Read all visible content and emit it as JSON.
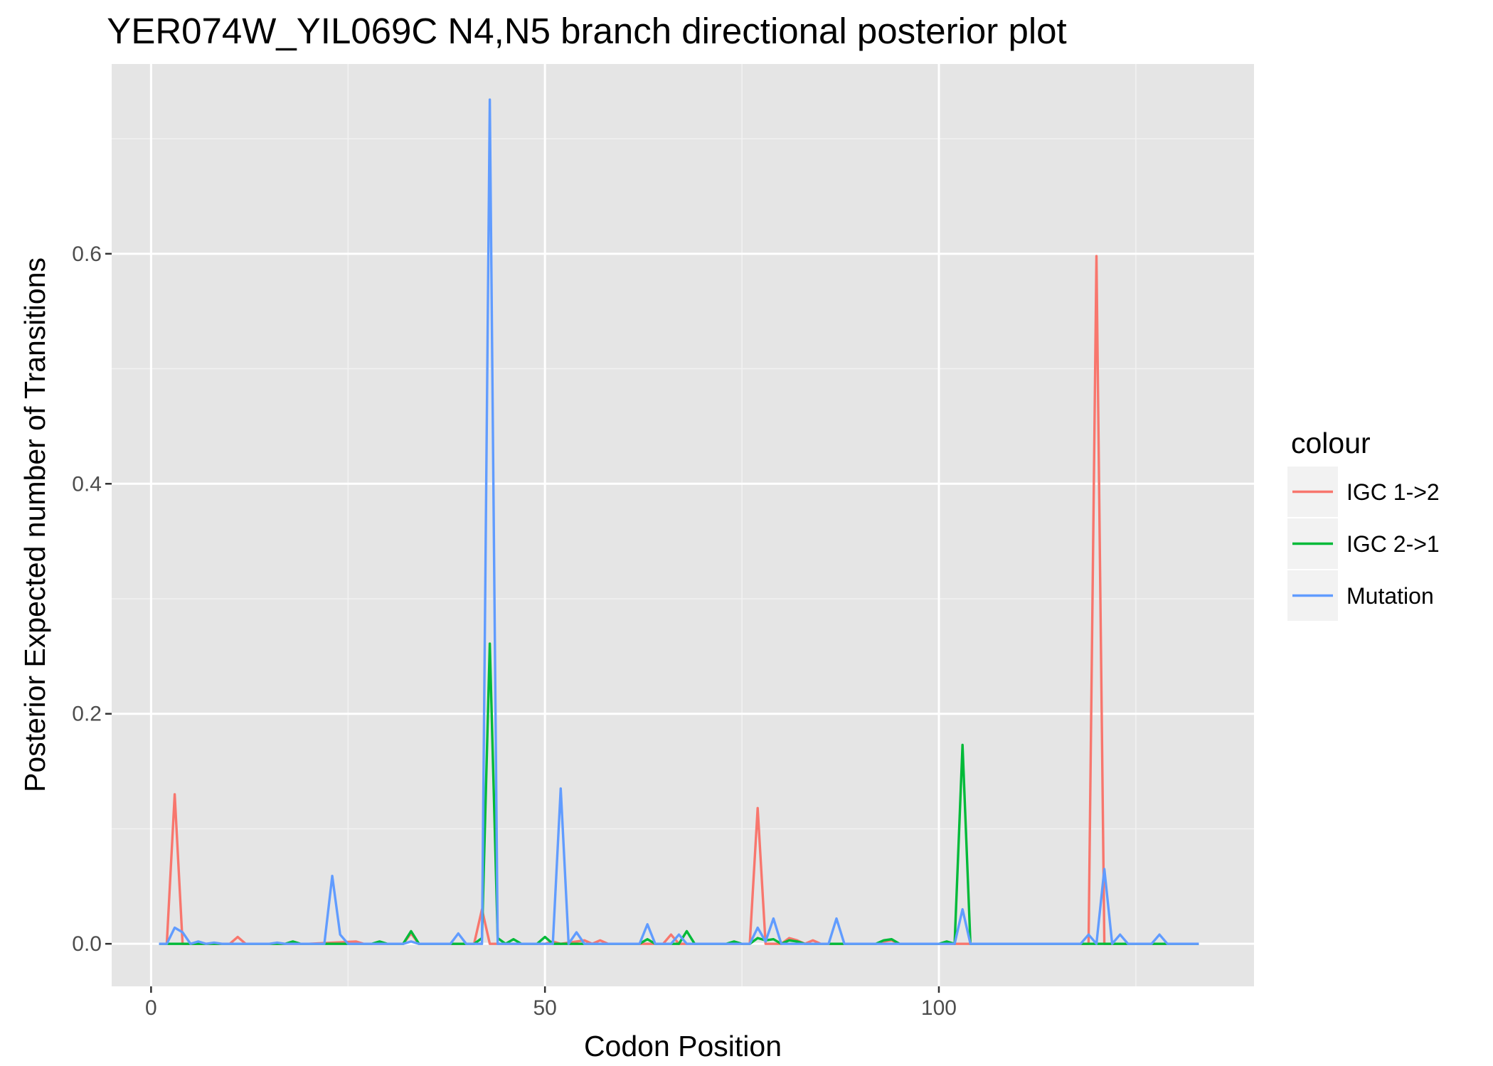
{
  "chart_data": {
    "type": "line",
    "title": "YER074W_YIL069C N4,N5 branch directional posterior plot",
    "xlabel": "Codon Position",
    "ylabel": "Posterior Expected number of Transitions",
    "xlim": [
      -5,
      140
    ],
    "ylim": [
      -0.037,
      0.765
    ],
    "x_ticks": [
      0,
      50,
      100
    ],
    "x_tick_labels": [
      "0",
      "50",
      "100"
    ],
    "y_ticks": [
      0.0,
      0.2,
      0.4,
      0.6
    ],
    "y_tick_labels": [
      "0.0",
      "0.2",
      "0.4",
      "0.6"
    ],
    "grid": true,
    "background": "#e5e5e5",
    "legend": {
      "title": "colour",
      "position": "right",
      "entries": [
        "IGC 1->2",
        "IGC 2->1",
        "Mutation"
      ]
    },
    "series": [
      {
        "name": "IGC 1->2",
        "color": "#f8766d",
        "points": [
          [
            1,
            0
          ],
          [
            2,
            0
          ],
          [
            3,
            0.13
          ],
          [
            4,
            0
          ],
          [
            5,
            0
          ],
          [
            10,
            0
          ],
          [
            11,
            0.006
          ],
          [
            12,
            0
          ],
          [
            20,
            0
          ],
          [
            26,
            0.002
          ],
          [
            27,
            0
          ],
          [
            32,
            0
          ],
          [
            33,
            0.009
          ],
          [
            34,
            0
          ],
          [
            41,
            0
          ],
          [
            42,
            0.03
          ],
          [
            43,
            0
          ],
          [
            44,
            0
          ],
          [
            50,
            0
          ],
          [
            51,
            0.002
          ],
          [
            52,
            0
          ],
          [
            55,
            0.003
          ],
          [
            56,
            0
          ],
          [
            57,
            0.003
          ],
          [
            58,
            0
          ],
          [
            65,
            0
          ],
          [
            66,
            0.008
          ],
          [
            67,
            0
          ],
          [
            76,
            0
          ],
          [
            77,
            0.118
          ],
          [
            78,
            0
          ],
          [
            80,
            0
          ],
          [
            81,
            0.005
          ],
          [
            82,
            0.003
          ],
          [
            83,
            0
          ],
          [
            84,
            0.003
          ],
          [
            85,
            0
          ],
          [
            92,
            0
          ],
          [
            93,
            0.002
          ],
          [
            94,
            0.003
          ],
          [
            95,
            0
          ],
          [
            119,
            0
          ],
          [
            120,
            0.598
          ],
          [
            121,
            0
          ],
          [
            125,
            0
          ],
          [
            133,
            0
          ]
        ]
      },
      {
        "name": "IGC 2->1",
        "color": "#00ba38",
        "points": [
          [
            1,
            0
          ],
          [
            17,
            0
          ],
          [
            18,
            0.002
          ],
          [
            19,
            0
          ],
          [
            28,
            0
          ],
          [
            29,
            0.002
          ],
          [
            30,
            0
          ],
          [
            32,
            0
          ],
          [
            33,
            0.011
          ],
          [
            34,
            0
          ],
          [
            41,
            0
          ],
          [
            42,
            0.005
          ],
          [
            43,
            0.261
          ],
          [
            44,
            0.005
          ],
          [
            45,
            0
          ],
          [
            46,
            0.004
          ],
          [
            47,
            0
          ],
          [
            49,
            0
          ],
          [
            50,
            0.006
          ],
          [
            51,
            0
          ],
          [
            62,
            0
          ],
          [
            63,
            0.004
          ],
          [
            64,
            0
          ],
          [
            67,
            0
          ],
          [
            68,
            0.011
          ],
          [
            69,
            0
          ],
          [
            73,
            0
          ],
          [
            74,
            0.002
          ],
          [
            75,
            0
          ],
          [
            76,
            0
          ],
          [
            77,
            0.005
          ],
          [
            78,
            0.003
          ],
          [
            79,
            0.004
          ],
          [
            80,
            0
          ],
          [
            81,
            0.003
          ],
          [
            82,
            0.002
          ],
          [
            83,
            0
          ],
          [
            92,
            0
          ],
          [
            93,
            0.003
          ],
          [
            94,
            0.004
          ],
          [
            95,
            0
          ],
          [
            100,
            0
          ],
          [
            101,
            0.002
          ],
          [
            102,
            0
          ],
          [
            103,
            0.173
          ],
          [
            104,
            0
          ],
          [
            133,
            0
          ]
        ]
      },
      {
        "name": "Mutation",
        "color": "#619cff",
        "points": [
          [
            1,
            0
          ],
          [
            2,
            0
          ],
          [
            3,
            0.014
          ],
          [
            4,
            0.01
          ],
          [
            5,
            0
          ],
          [
            6,
            0.002
          ],
          [
            7,
            0
          ],
          [
            8,
            0.001
          ],
          [
            9,
            0
          ],
          [
            15,
            0
          ],
          [
            16,
            0.001
          ],
          [
            17,
            0
          ],
          [
            21,
            0
          ],
          [
            22,
            0
          ],
          [
            23,
            0.059
          ],
          [
            24,
            0.008
          ],
          [
            25,
            0
          ],
          [
            32,
            0
          ],
          [
            33,
            0.002
          ],
          [
            34,
            0
          ],
          [
            38,
            0
          ],
          [
            39,
            0.009
          ],
          [
            40,
            0
          ],
          [
            41,
            0
          ],
          [
            42,
            0
          ],
          [
            43,
            0.734
          ],
          [
            44,
            0
          ],
          [
            51,
            0
          ],
          [
            52,
            0.135
          ],
          [
            53,
            0
          ],
          [
            54,
            0.01
          ],
          [
            55,
            0
          ],
          [
            62,
            0
          ],
          [
            63,
            0.017
          ],
          [
            64,
            0
          ],
          [
            66,
            0
          ],
          [
            67,
            0.008
          ],
          [
            68,
            0
          ],
          [
            76,
            0
          ],
          [
            77,
            0.014
          ],
          [
            78,
            0.002
          ],
          [
            79,
            0.022
          ],
          [
            80,
            0
          ],
          [
            86,
            0
          ],
          [
            87,
            0.022
          ],
          [
            88,
            0
          ],
          [
            102,
            0
          ],
          [
            103,
            0.03
          ],
          [
            104,
            0
          ],
          [
            118,
            0
          ],
          [
            119,
            0.008
          ],
          [
            120,
            0
          ],
          [
            121,
            0.065
          ],
          [
            122,
            0
          ],
          [
            123,
            0.008
          ],
          [
            124,
            0
          ],
          [
            127,
            0
          ],
          [
            128,
            0.008
          ],
          [
            129,
            0
          ],
          [
            133,
            0
          ]
        ]
      }
    ]
  }
}
